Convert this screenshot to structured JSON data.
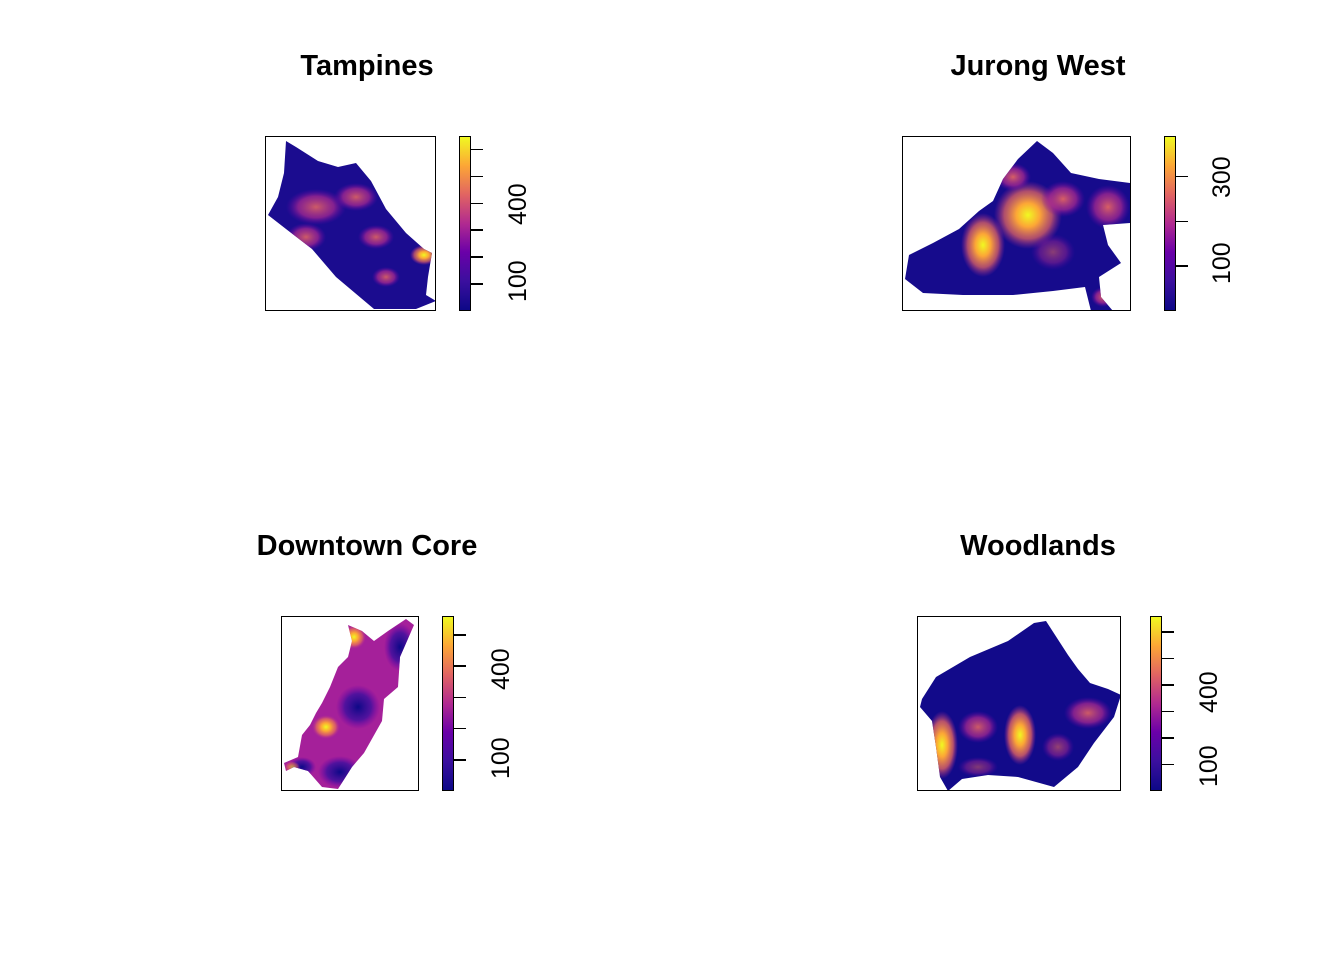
{
  "chart_data": [
    {
      "type": "heatmap",
      "title": "Tampines",
      "legend": {
        "min": 0,
        "max": 650,
        "ticks": [
          100,
          200,
          300,
          400,
          500,
          600
        ],
        "labels": [
          "100",
          "400"
        ]
      },
      "colors": [
        "#0d0887",
        "#3b0f9e",
        "#6a00a8",
        "#b12a90",
        "#e16462",
        "#fca636",
        "#f0f921"
      ]
    },
    {
      "type": "heatmap",
      "title": "Jurong West",
      "legend": {
        "min": 0,
        "max": 390,
        "ticks": [
          100,
          200,
          300
        ],
        "labels": [
          "100",
          "300"
        ]
      },
      "colors": [
        "#0d0887",
        "#3b0f9e",
        "#6a00a8",
        "#b12a90",
        "#e16462",
        "#fca636",
        "#f0f921"
      ]
    },
    {
      "type": "heatmap",
      "title": "Downtown Core",
      "legend": {
        "min": 0,
        "max": 560,
        "ticks": [
          100,
          200,
          300,
          400,
          500
        ],
        "labels": [
          "100",
          "400"
        ]
      },
      "colors": [
        "#0d0887",
        "#3b0f9e",
        "#6a00a8",
        "#b12a90",
        "#e16462",
        "#fca636",
        "#f0f921"
      ]
    },
    {
      "type": "heatmap",
      "title": "Woodlands",
      "legend": {
        "min": 0,
        "max": 660,
        "ticks": [
          100,
          200,
          300,
          400,
          500,
          600
        ],
        "labels": [
          "100",
          "400"
        ]
      },
      "colors": [
        "#0d0887",
        "#3b0f9e",
        "#6a00a8",
        "#b12a90",
        "#e16462",
        "#fca636",
        "#f0f921"
      ]
    }
  ]
}
